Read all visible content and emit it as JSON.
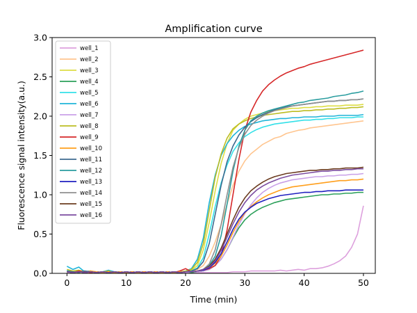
{
  "chart_data": {
    "type": "line",
    "title": "Amplification curve",
    "xlabel": "Time (min)",
    "ylabel": "Fluorescence signal intensity(a.u.)",
    "xlim": [
      -2.5,
      52
    ],
    "ylim": [
      0,
      3.0
    ],
    "xticks": [
      0,
      10,
      20,
      30,
      40,
      50
    ],
    "yticks": [
      0.0,
      0.5,
      1.0,
      1.5,
      2.0,
      2.5,
      3.0
    ],
    "xtick_labels": [
      "0",
      "10",
      "20",
      "30",
      "40",
      "50"
    ],
    "ytick_labels": [
      "0.0",
      "0.5",
      "1.0",
      "1.5",
      "2.0",
      "2.5",
      "3.0"
    ],
    "grid": false,
    "legend_position": "upper-left",
    "x": [
      0,
      1,
      2,
      3,
      4,
      5,
      6,
      7,
      8,
      9,
      10,
      11,
      12,
      13,
      14,
      15,
      16,
      17,
      18,
      19,
      20,
      21,
      22,
      23,
      24,
      25,
      26,
      27,
      28,
      29,
      30,
      31,
      32,
      33,
      34,
      35,
      36,
      37,
      38,
      39,
      40,
      41,
      42,
      43,
      44,
      45,
      46,
      47,
      48,
      49,
      50
    ],
    "series": [
      {
        "name": "well_1",
        "color": "#dda0dd",
        "values": [
          0.01,
          0.02,
          0.01,
          0.03,
          0.02,
          0.01,
          0.02,
          0.01,
          0.01,
          0.02,
          0.01,
          0.02,
          0.01,
          0.01,
          0.02,
          0.01,
          0.01,
          0.02,
          0.01,
          0.01,
          0.01,
          0.01,
          0.01,
          0.01,
          0.01,
          0.01,
          0.01,
          0.01,
          0.02,
          0.02,
          0.02,
          0.03,
          0.03,
          0.03,
          0.03,
          0.03,
          0.04,
          0.03,
          0.04,
          0.05,
          0.04,
          0.06,
          0.06,
          0.07,
          0.09,
          0.12,
          0.16,
          0.22,
          0.33,
          0.5,
          0.86
        ]
      },
      {
        "name": "well_2",
        "color": "#ffc58f",
        "values": [
          0.02,
          0.01,
          0.03,
          0.02,
          0.01,
          0.02,
          0.02,
          0.01,
          0.02,
          0.01,
          0.02,
          0.01,
          0.02,
          0.01,
          0.01,
          0.02,
          0.01,
          0.02,
          0.01,
          0.02,
          0.02,
          0.03,
          0.05,
          0.1,
          0.22,
          0.4,
          0.62,
          0.88,
          1.12,
          1.3,
          1.43,
          1.52,
          1.58,
          1.64,
          1.68,
          1.72,
          1.74,
          1.78,
          1.8,
          1.82,
          1.83,
          1.85,
          1.86,
          1.87,
          1.88,
          1.89,
          1.9,
          1.91,
          1.92,
          1.93,
          1.94
        ]
      },
      {
        "name": "well_3",
        "color": "#dddd44",
        "values": [
          0.03,
          0.02,
          0.01,
          0.02,
          0.03,
          0.01,
          0.02,
          0.01,
          0.02,
          0.02,
          0.01,
          0.02,
          0.01,
          0.02,
          0.01,
          0.02,
          0.01,
          0.01,
          0.02,
          0.01,
          0.02,
          0.04,
          0.1,
          0.3,
          0.65,
          1.05,
          1.4,
          1.65,
          1.82,
          1.9,
          1.96,
          2.0,
          2.02,
          2.04,
          2.06,
          2.07,
          2.08,
          2.09,
          2.1,
          2.1,
          2.11,
          2.11,
          2.12,
          2.12,
          2.13,
          2.13,
          2.13,
          2.14,
          2.14,
          2.14,
          2.15
        ]
      },
      {
        "name": "well_4",
        "color": "#2ca05a",
        "values": [
          0.02,
          0.01,
          0.02,
          0.03,
          0.01,
          0.02,
          0.01,
          0.02,
          0.01,
          0.02,
          0.01,
          0.01,
          0.02,
          0.01,
          0.02,
          0.01,
          0.01,
          0.02,
          0.01,
          0.01,
          0.02,
          0.01,
          0.02,
          0.03,
          0.05,
          0.1,
          0.18,
          0.3,
          0.45,
          0.58,
          0.68,
          0.75,
          0.8,
          0.84,
          0.87,
          0.9,
          0.92,
          0.94,
          0.95,
          0.96,
          0.97,
          0.98,
          0.99,
          1.0,
          1.0,
          1.01,
          1.01,
          1.02,
          1.02,
          1.03,
          1.03
        ]
      },
      {
        "name": "well_5",
        "color": "#33e0e8",
        "values": [
          0.04,
          0.02,
          0.03,
          0.01,
          0.02,
          0.02,
          0.01,
          0.03,
          0.02,
          0.01,
          0.02,
          0.01,
          0.02,
          0.01,
          0.02,
          0.01,
          0.02,
          0.01,
          0.02,
          0.01,
          0.02,
          0.03,
          0.07,
          0.2,
          0.5,
          0.85,
          1.15,
          1.38,
          1.55,
          1.66,
          1.74,
          1.79,
          1.83,
          1.86,
          1.88,
          1.9,
          1.91,
          1.92,
          1.93,
          1.94,
          1.95,
          1.95,
          1.96,
          1.96,
          1.97,
          1.97,
          1.98,
          1.98,
          1.98,
          1.99,
          1.99
        ]
      },
      {
        "name": "well_6",
        "color": "#1fb4d8",
        "values": [
          0.09,
          0.05,
          0.08,
          0.02,
          0.03,
          0.01,
          0.02,
          0.04,
          0.02,
          0.01,
          0.02,
          0.01,
          0.02,
          0.01,
          0.02,
          0.01,
          0.02,
          0.01,
          0.02,
          0.01,
          0.03,
          0.06,
          0.18,
          0.45,
          0.9,
          1.25,
          1.5,
          1.65,
          1.75,
          1.82,
          1.87,
          1.9,
          1.92,
          1.94,
          1.95,
          1.96,
          1.97,
          1.97,
          1.98,
          1.98,
          1.99,
          1.99,
          1.99,
          2.0,
          2.0,
          2.0,
          2.01,
          2.01,
          2.01,
          2.01,
          2.02
        ]
      },
      {
        "name": "well_7",
        "color": "#c9a0e8",
        "values": [
          0.02,
          0.01,
          0.02,
          0.01,
          0.03,
          0.01,
          0.02,
          0.01,
          0.02,
          0.01,
          0.02,
          0.01,
          0.02,
          0.01,
          0.02,
          0.01,
          0.01,
          0.02,
          0.01,
          0.02,
          0.01,
          0.02,
          0.02,
          0.03,
          0.05,
          0.1,
          0.18,
          0.3,
          0.46,
          0.62,
          0.76,
          0.87,
          0.96,
          1.03,
          1.08,
          1.12,
          1.15,
          1.17,
          1.19,
          1.2,
          1.21,
          1.22,
          1.23,
          1.23,
          1.24,
          1.24,
          1.25,
          1.25,
          1.26,
          1.26,
          1.27
        ]
      },
      {
        "name": "well_8",
        "color": "#bcbd22",
        "values": [
          0.05,
          0.03,
          0.04,
          0.02,
          0.03,
          0.01,
          0.02,
          0.03,
          0.01,
          0.02,
          0.01,
          0.02,
          0.01,
          0.02,
          0.01,
          0.02,
          0.01,
          0.02,
          0.01,
          0.02,
          0.03,
          0.05,
          0.14,
          0.38,
          0.8,
          1.22,
          1.52,
          1.72,
          1.84,
          1.9,
          1.94,
          1.97,
          1.99,
          2.01,
          2.02,
          2.03,
          2.04,
          2.05,
          2.06,
          2.06,
          2.07,
          2.07,
          2.08,
          2.08,
          2.09,
          2.09,
          2.1,
          2.1,
          2.11,
          2.11,
          2.12
        ]
      },
      {
        "name": "well_9",
        "color": "#d62728",
        "values": [
          0.02,
          0.01,
          0.03,
          0.02,
          0.01,
          0.02,
          0.01,
          0.02,
          0.01,
          0.02,
          0.01,
          0.02,
          0.01,
          0.02,
          0.01,
          0.02,
          0.01,
          0.02,
          0.01,
          0.03,
          0.06,
          0.02,
          0.03,
          0.04,
          0.06,
          0.1,
          0.22,
          0.55,
          1.0,
          1.45,
          1.82,
          2.05,
          2.2,
          2.32,
          2.4,
          2.46,
          2.51,
          2.55,
          2.58,
          2.61,
          2.63,
          2.66,
          2.68,
          2.7,
          2.72,
          2.74,
          2.76,
          2.78,
          2.8,
          2.82,
          2.84
        ]
      },
      {
        "name": "well_10",
        "color": "#ff9f1c",
        "values": [
          0.02,
          0.01,
          0.02,
          0.01,
          0.03,
          0.02,
          0.01,
          0.02,
          0.01,
          0.02,
          0.01,
          0.02,
          0.01,
          0.02,
          0.01,
          0.02,
          0.01,
          0.02,
          0.01,
          0.02,
          0.02,
          0.02,
          0.03,
          0.04,
          0.07,
          0.13,
          0.22,
          0.36,
          0.52,
          0.66,
          0.77,
          0.85,
          0.91,
          0.96,
          1.0,
          1.03,
          1.06,
          1.08,
          1.1,
          1.11,
          1.12,
          1.13,
          1.14,
          1.15,
          1.16,
          1.17,
          1.18,
          1.18,
          1.19,
          1.19,
          1.2
        ]
      },
      {
        "name": "well_11",
        "color": "#3d6a8f",
        "values": [
          0.03,
          0.02,
          0.01,
          0.03,
          0.02,
          0.01,
          0.02,
          0.01,
          0.02,
          0.01,
          0.02,
          0.01,
          0.02,
          0.01,
          0.02,
          0.01,
          0.02,
          0.01,
          0.02,
          0.01,
          0.02,
          0.03,
          0.06,
          0.15,
          0.38,
          0.75,
          1.12,
          1.42,
          1.62,
          1.76,
          1.86,
          1.93,
          1.98,
          2.02,
          2.05,
          2.08,
          2.1,
          2.12,
          2.13,
          2.14,
          2.15,
          2.16,
          2.17,
          2.18,
          2.19,
          2.19,
          2.2,
          2.2,
          2.21,
          2.21,
          2.22
        ]
      },
      {
        "name": "well_12",
        "color": "#2a9d9f",
        "values": [
          0.02,
          0.01,
          0.02,
          0.01,
          0.02,
          0.01,
          0.02,
          0.01,
          0.02,
          0.01,
          0.02,
          0.01,
          0.02,
          0.01,
          0.02,
          0.01,
          0.02,
          0.01,
          0.02,
          0.01,
          0.02,
          0.02,
          0.03,
          0.05,
          0.1,
          0.22,
          0.48,
          0.88,
          1.3,
          1.62,
          1.82,
          1.94,
          2.0,
          2.04,
          2.07,
          2.09,
          2.11,
          2.13,
          2.15,
          2.17,
          2.18,
          2.2,
          2.21,
          2.22,
          2.23,
          2.25,
          2.26,
          2.27,
          2.29,
          2.3,
          2.32
        ]
      },
      {
        "name": "well_13",
        "color": "#1f1fbf",
        "values": [
          0.02,
          0.01,
          0.02,
          0.01,
          0.02,
          0.01,
          0.02,
          0.01,
          0.02,
          0.01,
          0.02,
          0.01,
          0.02,
          0.01,
          0.02,
          0.01,
          0.02,
          0.01,
          0.02,
          0.01,
          0.02,
          0.02,
          0.03,
          0.04,
          0.07,
          0.14,
          0.25,
          0.4,
          0.56,
          0.69,
          0.78,
          0.84,
          0.89,
          0.92,
          0.95,
          0.97,
          0.99,
          1.0,
          1.01,
          1.02,
          1.03,
          1.03,
          1.04,
          1.04,
          1.05,
          1.05,
          1.05,
          1.06,
          1.06,
          1.06,
          1.06
        ]
      },
      {
        "name": "well_14",
        "color": "#8f8f8f",
        "values": [
          0.02,
          0.01,
          0.02,
          0.01,
          0.02,
          0.01,
          0.02,
          0.01,
          0.02,
          0.01,
          0.02,
          0.01,
          0.02,
          0.01,
          0.02,
          0.01,
          0.02,
          0.01,
          0.02,
          0.01,
          0.02,
          0.02,
          0.03,
          0.05,
          0.12,
          0.3,
          0.62,
          1.0,
          1.35,
          1.6,
          1.77,
          1.88,
          1.95,
          2.0,
          2.04,
          2.07,
          2.09,
          2.11,
          2.13,
          2.14,
          2.15,
          2.16,
          2.17,
          2.18,
          2.19,
          2.19,
          2.2,
          2.2,
          2.21,
          2.21,
          2.22
        ]
      },
      {
        "name": "well_15",
        "color": "#6b3b1f",
        "values": [
          0.02,
          0.01,
          0.02,
          0.01,
          0.02,
          0.01,
          0.02,
          0.01,
          0.02,
          0.01,
          0.02,
          0.01,
          0.02,
          0.01,
          0.02,
          0.01,
          0.02,
          0.01,
          0.02,
          0.01,
          0.02,
          0.02,
          0.03,
          0.05,
          0.09,
          0.18,
          0.32,
          0.5,
          0.68,
          0.84,
          0.96,
          1.05,
          1.11,
          1.16,
          1.2,
          1.23,
          1.25,
          1.27,
          1.28,
          1.29,
          1.3,
          1.31,
          1.31,
          1.32,
          1.32,
          1.33,
          1.33,
          1.34,
          1.34,
          1.34,
          1.35
        ]
      },
      {
        "name": "well_16",
        "color": "#7b4ca0",
        "values": [
          0.02,
          0.01,
          0.02,
          0.01,
          0.02,
          0.01,
          0.02,
          0.01,
          0.02,
          0.01,
          0.02,
          0.01,
          0.02,
          0.01,
          0.02,
          0.01,
          0.02,
          0.01,
          0.02,
          0.01,
          0.02,
          0.02,
          0.03,
          0.05,
          0.08,
          0.16,
          0.29,
          0.46,
          0.63,
          0.78,
          0.9,
          0.99,
          1.06,
          1.11,
          1.15,
          1.18,
          1.21,
          1.23,
          1.25,
          1.26,
          1.27,
          1.28,
          1.29,
          1.3,
          1.3,
          1.31,
          1.31,
          1.32,
          1.32,
          1.33,
          1.33
        ]
      }
    ]
  }
}
